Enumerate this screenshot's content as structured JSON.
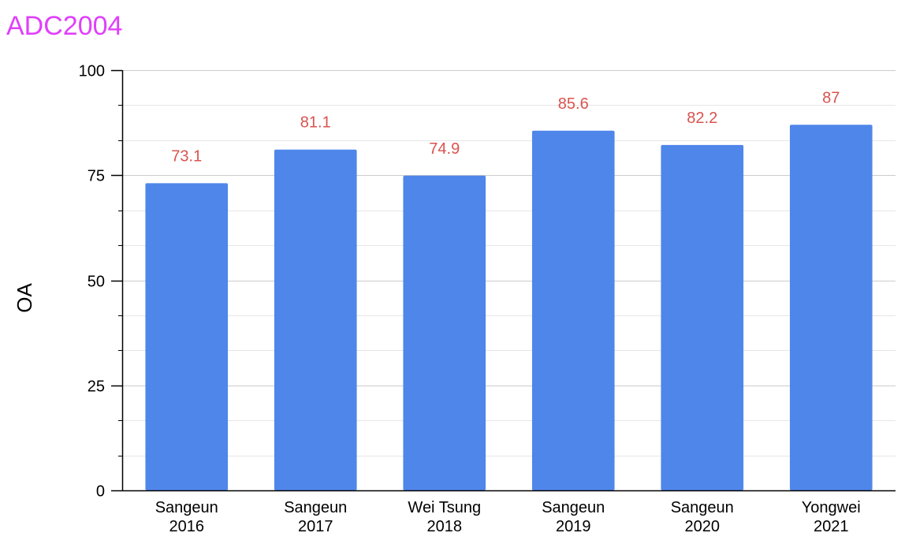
{
  "chart_data": {
    "type": "bar",
    "title": "ADC2004",
    "xlabel": "",
    "ylabel": "OA",
    "categories": [
      [
        "Sangeun",
        "2016"
      ],
      [
        "Sangeun",
        "2017"
      ],
      [
        "Wei Tsung",
        "2018"
      ],
      [
        "Sangeun",
        "2019"
      ],
      [
        "Sangeun",
        "2020"
      ],
      [
        "Yongwei",
        "2021"
      ]
    ],
    "values": [
      73.1,
      81.1,
      74.9,
      85.6,
      82.2,
      87
    ],
    "value_labels": [
      "73.1",
      "81.1",
      "74.9",
      "85.6",
      "82.2",
      "87"
    ],
    "ylim": [
      0,
      100
    ],
    "yticks": [
      0,
      25,
      50,
      75,
      100
    ],
    "ytick_labels": [
      "0",
      "25",
      "50",
      "75",
      "100"
    ],
    "minor_gridlines": [
      8.333,
      16.667,
      33.333,
      41.667,
      58.333,
      66.667,
      83.333,
      91.667
    ],
    "grid": true,
    "legend": "none",
    "colors": {
      "title": "#e040fb",
      "bar": "#4f86ea",
      "data_label": "#d9534f",
      "major_grid": "#cccccc",
      "minor_grid": "#e6e6e6",
      "axis": "#000000"
    }
  }
}
